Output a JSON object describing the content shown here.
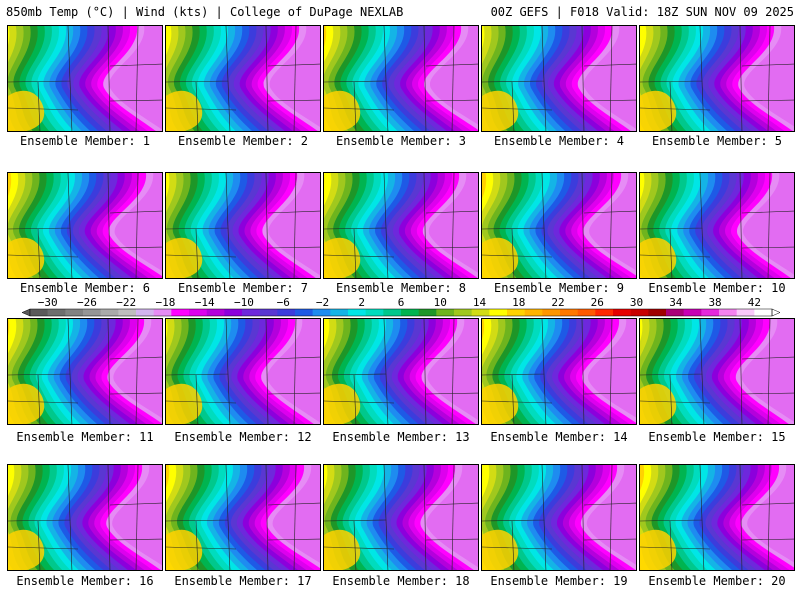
{
  "header": {
    "left_title": "850mb Temp (°C) | Wind (kts) | College of DuPage NEXLAB",
    "right_title": "00Z GEFS | F018 Valid: 18Z SUN NOV 09 2025"
  },
  "members": [
    {
      "label": "Ensemble Member: 1"
    },
    {
      "label": "Ensemble Member: 2"
    },
    {
      "label": "Ensemble Member: 3"
    },
    {
      "label": "Ensemble Member: 4"
    },
    {
      "label": "Ensemble Member: 5"
    },
    {
      "label": "Ensemble Member: 6"
    },
    {
      "label": "Ensemble Member: 7"
    },
    {
      "label": "Ensemble Member: 8"
    },
    {
      "label": "Ensemble Member: 9"
    },
    {
      "label": "Ensemble Member: 10"
    },
    {
      "label": "Ensemble Member: 11"
    },
    {
      "label": "Ensemble Member: 12"
    },
    {
      "label": "Ensemble Member: 13"
    },
    {
      "label": "Ensemble Member: 14"
    },
    {
      "label": "Ensemble Member: 15"
    },
    {
      "label": "Ensemble Member: 16"
    },
    {
      "label": "Ensemble Member: 17"
    },
    {
      "label": "Ensemble Member: 18"
    },
    {
      "label": "Ensemble Member: 19"
    },
    {
      "label": "Ensemble Member: 20"
    }
  ],
  "colorbar": {
    "tick_labels": [
      "−30",
      "−26",
      "−22",
      "−18",
      "−14",
      "−10",
      "−6",
      "−2",
      "2",
      "6",
      "10",
      "14",
      "18",
      "22",
      "26",
      "30",
      "34",
      "38",
      "42"
    ],
    "colors": [
      "#5a5a5a",
      "#6e6e6e",
      "#828282",
      "#969696",
      "#aaaaaa",
      "#bebebe",
      "#d2b4f0",
      "#e68cf5",
      "#ff00ff",
      "#dd00ee",
      "#b400dc",
      "#8c00dc",
      "#6e28dc",
      "#5a37d2",
      "#3c3cdc",
      "#1e5ae6",
      "#1e8cf0",
      "#14b4e6",
      "#00e6e6",
      "#00dcbe",
      "#00c88c",
      "#00b450",
      "#1e9628",
      "#6eb41e",
      "#a0c81e",
      "#d2dc14",
      "#ffff00",
      "#ffd200",
      "#ffb400",
      "#ff9600",
      "#ff7800",
      "#ff5a00",
      "#ff2800",
      "#e60000",
      "#c80000",
      "#a00000",
      "#aa0078",
      "#c800b4",
      "#e628dc",
      "#f582f0",
      "#fac8fa",
      "#ffffff"
    ]
  },
  "field_colors": {
    "warm": [
      "#ffb400",
      "#ffd200",
      "#ffff00",
      "#d2dc14",
      "#a0c81e",
      "#6eb41e",
      "#1e9628",
      "#00b450",
      "#00c88c",
      "#00dcbe",
      "#00e6e6",
      "#14b4e6",
      "#1e8cf0",
      "#1e5ae6",
      "#3c3cdc",
      "#5a37d2",
      "#6e28dc",
      "#8c00dc",
      "#b400dc",
      "#dd00ee",
      "#ff00ff",
      "#e68cf5"
    ]
  }
}
